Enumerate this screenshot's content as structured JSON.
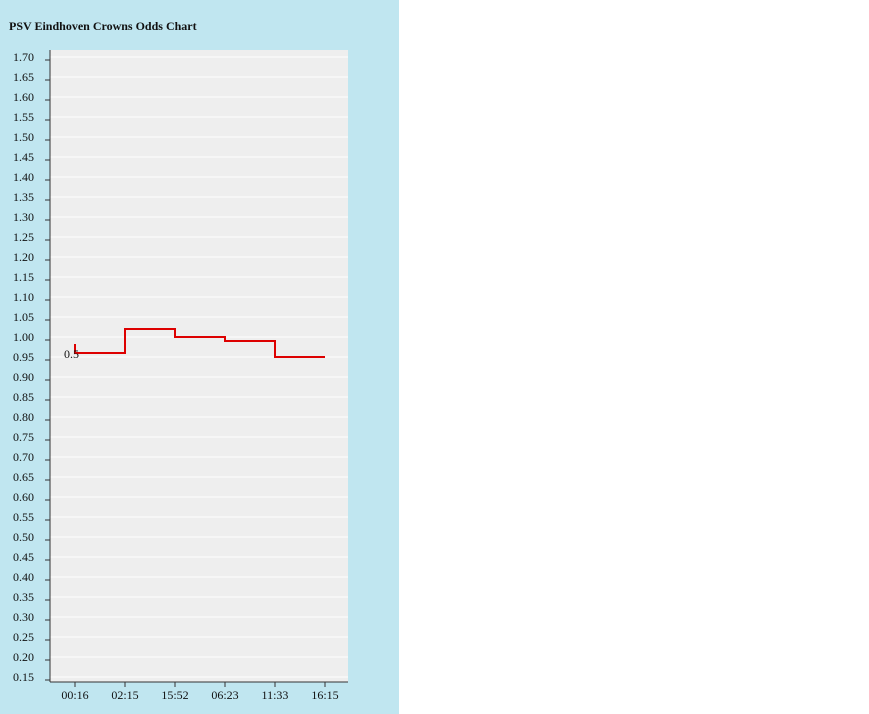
{
  "chart_data": {
    "type": "line",
    "title": "PSV Eindhoven Crowns Odds Chart",
    "xlabel": "",
    "ylabel": "",
    "ylim": [
      0.15,
      1.7
    ],
    "y_ticks": [
      "1.70",
      "1.65",
      "1.60",
      "1.55",
      "1.50",
      "1.45",
      "1.40",
      "1.35",
      "1.30",
      "1.25",
      "1.20",
      "1.15",
      "1.10",
      "1.05",
      "1.00",
      "0.95",
      "0.90",
      "0.85",
      "0.80",
      "0.75",
      "0.70",
      "0.65",
      "0.60",
      "0.55",
      "0.50",
      "0.45",
      "0.40",
      "0.35",
      "0.30",
      "0.25",
      "0.20",
      "0.15"
    ],
    "categories": [
      "00:16",
      "02:15",
      "15:52",
      "06:23",
      "11:33",
      "16:15"
    ],
    "series": [
      {
        "values": [
          0.96,
          1.02,
          1.0,
          0.99,
          0.95,
          0.95
        ],
        "color": "#dd0000",
        "step": true
      }
    ],
    "annotations": [
      {
        "text": "0.5",
        "x": "00:16",
        "y": 0.95
      }
    ],
    "grid": true,
    "background": "#eeeeee"
  },
  "colors": {
    "panel": "#c0e6f0",
    "plot_bg": "#eeeeee",
    "line": "#dd0000",
    "grid": "#ffffff"
  }
}
